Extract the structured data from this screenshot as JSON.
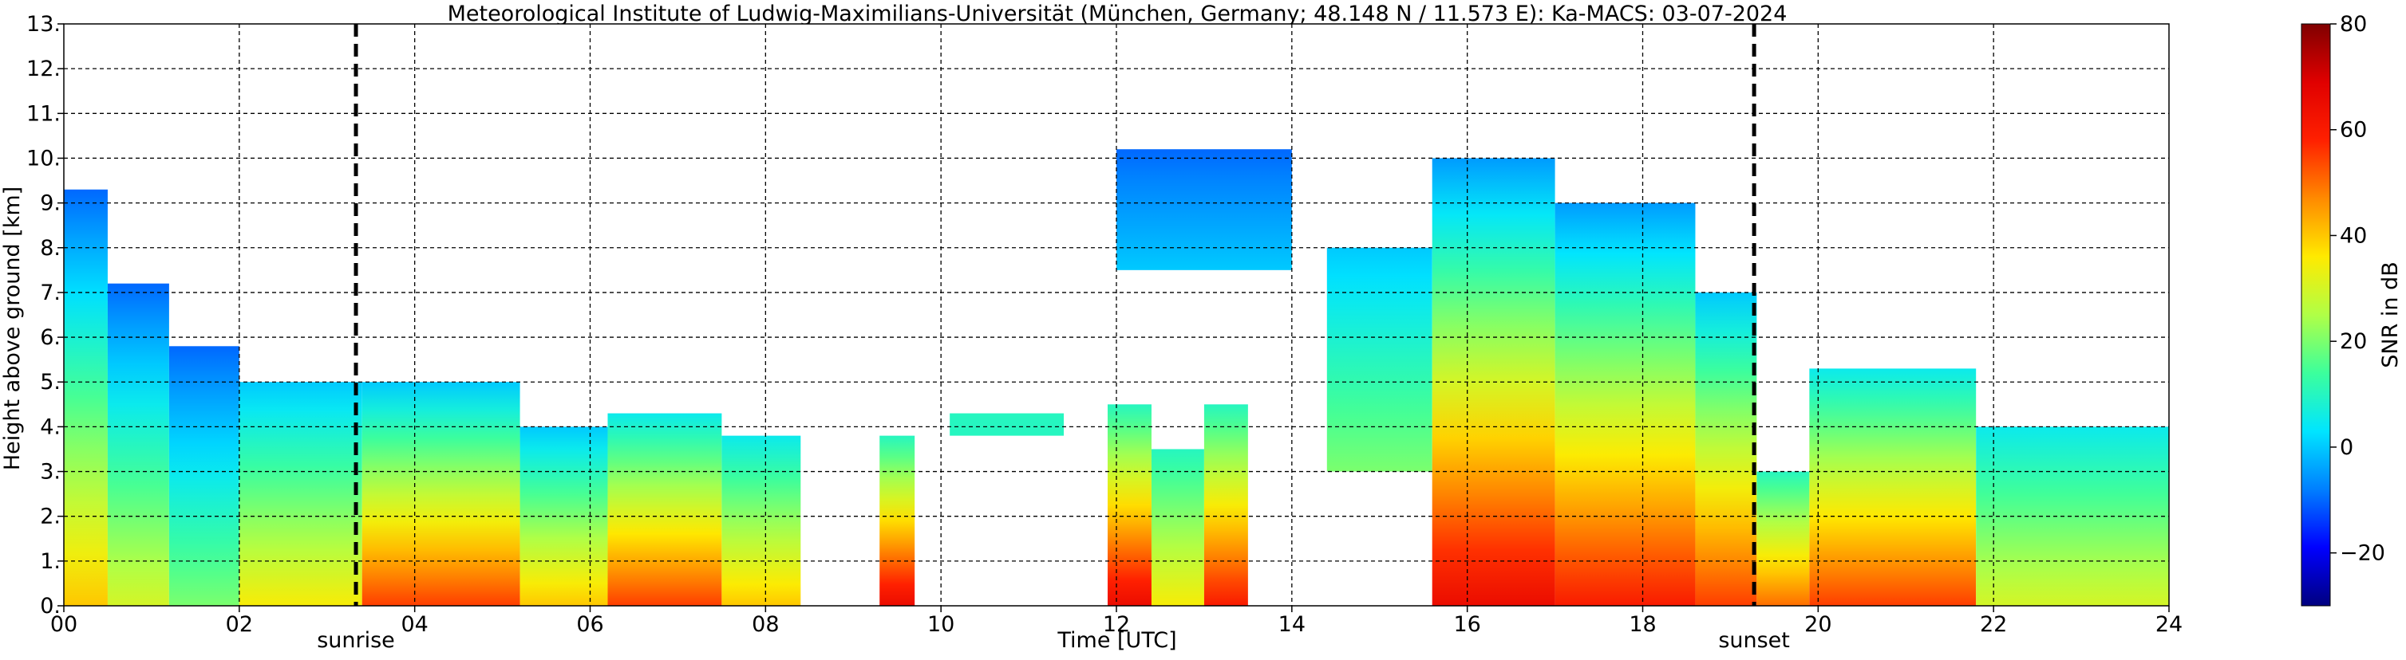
{
  "chart_data": {
    "type": "heatmap",
    "title": "Meteorological Institute of Ludwig-Maximilians-Universität (München, Germany; 48.148 N / 11.573 E):    Ka-MACS: 03-07-2024",
    "xlabel": "Time [UTC]",
    "ylabel": "Height above ground [km]",
    "xlim": [
      0,
      24
    ],
    "ylim": [
      0,
      13
    ],
    "xticks": [
      0,
      2,
      4,
      6,
      8,
      10,
      12,
      14,
      16,
      18,
      20,
      22,
      24
    ],
    "xtick_labels": [
      "00",
      "02",
      "04",
      "06",
      "08",
      "10",
      "12",
      "14",
      "16",
      "18",
      "20",
      "22",
      "24"
    ],
    "yticks": [
      0,
      1,
      2,
      3,
      4,
      5,
      6,
      7,
      8,
      9,
      10,
      11,
      12,
      13
    ],
    "ytick_labels": [
      "0.",
      "1.",
      "2.",
      "3.",
      "4.",
      "5.",
      "6.",
      "7.",
      "8.",
      "9.",
      "10.",
      "11.",
      "12.",
      "13."
    ],
    "grid": true,
    "markers": [
      {
        "label": "sunrise",
        "x": 3.33
      },
      {
        "label": "sunset",
        "x": 19.27
      }
    ],
    "colorbar": {
      "label": "SNR in dB",
      "range": [
        -30,
        80
      ],
      "ticks": [
        -20,
        0,
        20,
        40,
        60,
        80
      ],
      "tick_labels": [
        "−20",
        "0",
        "20",
        "40",
        "60",
        "80"
      ],
      "colors": [
        "#00007f",
        "#0000ff",
        "#007fff",
        "#00e5ff",
        "#3cff9c",
        "#b0ff46",
        "#ffea00",
        "#ff8a00",
        "#ff2000",
        "#e00000",
        "#800000"
      ]
    },
    "cloud_segments": [
      {
        "t0": 0.0,
        "t1": 0.5,
        "base": 0.0,
        "top": 9.3,
        "snr_low": 40,
        "snr_high": -10
      },
      {
        "t0": 0.5,
        "t1": 1.2,
        "base": 0.0,
        "top": 7.2,
        "snr_low": 30,
        "snr_high": -10
      },
      {
        "t0": 1.2,
        "t1": 2.0,
        "base": 0.0,
        "top": 5.8,
        "snr_low": 20,
        "snr_high": -10
      },
      {
        "t0": 2.0,
        "t1": 3.4,
        "base": 0.0,
        "top": 5.0,
        "snr_low": 35,
        "snr_high": 0
      },
      {
        "t0": 3.4,
        "t1": 5.2,
        "base": 0.0,
        "top": 5.0,
        "snr_low": 55,
        "snr_high": 0
      },
      {
        "t0": 5.2,
        "t1": 6.2,
        "base": 0.0,
        "top": 4.0,
        "snr_low": 40,
        "snr_high": 0
      },
      {
        "t0": 6.2,
        "t1": 7.5,
        "base": 0.0,
        "top": 4.3,
        "snr_low": 55,
        "snr_high": 5
      },
      {
        "t0": 7.5,
        "t1": 8.4,
        "base": 0.0,
        "top": 3.8,
        "snr_low": 40,
        "snr_high": 5
      },
      {
        "t0": 9.3,
        "t1": 9.7,
        "base": 0.0,
        "top": 3.8,
        "snr_low": 65,
        "snr_high": 10
      },
      {
        "t0": 10.1,
        "t1": 11.4,
        "base": 3.8,
        "top": 4.3,
        "snr_low": 10,
        "snr_high": 10
      },
      {
        "t0": 11.9,
        "t1": 12.4,
        "base": 0.0,
        "top": 4.5,
        "snr_low": 65,
        "snr_high": 10
      },
      {
        "t0": 12.4,
        "t1": 13.0,
        "base": 0.0,
        "top": 3.5,
        "snr_low": 35,
        "snr_high": 10
      },
      {
        "t0": 13.0,
        "t1": 13.5,
        "base": 0.0,
        "top": 4.5,
        "snr_low": 60,
        "snr_high": 10
      },
      {
        "t0": 12.0,
        "t1": 14.0,
        "base": 7.5,
        "top": 10.2,
        "snr_low": 0,
        "snr_high": -10
      },
      {
        "t0": 14.4,
        "t1": 15.6,
        "base": 3.0,
        "top": 8.0,
        "snr_low": 20,
        "snr_high": 0
      },
      {
        "t0": 15.6,
        "t1": 17.0,
        "base": 0.0,
        "top": 10.0,
        "snr_low": 65,
        "snr_high": -5
      },
      {
        "t0": 17.0,
        "t1": 18.6,
        "base": 0.0,
        "top": 9.0,
        "snr_low": 60,
        "snr_high": -5
      },
      {
        "t0": 18.6,
        "t1": 19.3,
        "base": 0.0,
        "top": 7.0,
        "snr_low": 55,
        "snr_high": 0
      },
      {
        "t0": 19.3,
        "t1": 19.9,
        "base": 0.0,
        "top": 3.0,
        "snr_low": 50,
        "snr_high": 10
      },
      {
        "t0": 19.9,
        "t1": 21.8,
        "base": 0.0,
        "top": 5.3,
        "snr_low": 55,
        "snr_high": 5
      },
      {
        "t0": 21.8,
        "t1": 24.0,
        "base": 0.0,
        "top": 4.0,
        "snr_low": 30,
        "snr_high": 5
      }
    ]
  }
}
